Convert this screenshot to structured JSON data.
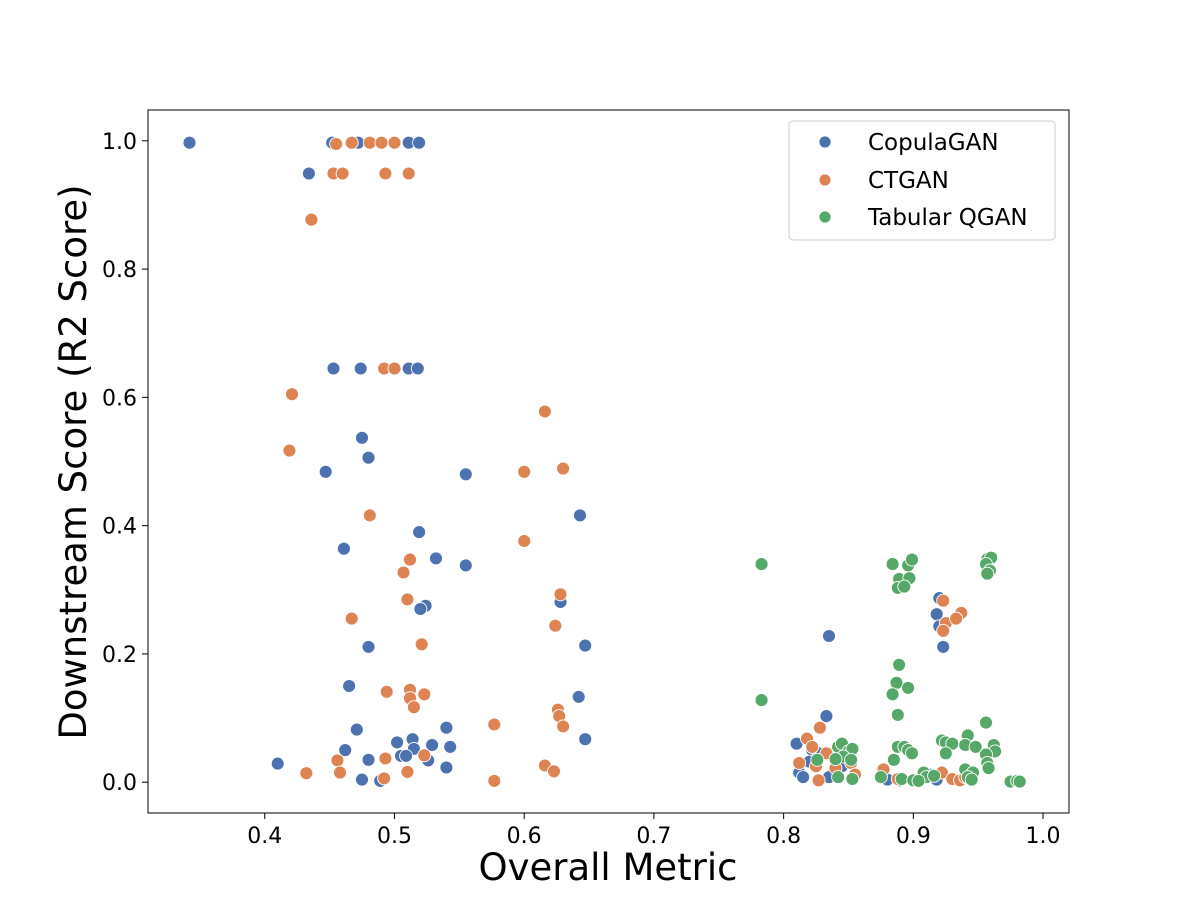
{
  "chart_data": {
    "type": "scatter",
    "title": "",
    "xlabel": "Overall Metric",
    "ylabel": "Downstream Score (R2 Score)",
    "xlim": [
      0.31,
      1.02
    ],
    "ylim": [
      -0.048,
      1.048
    ],
    "xticks": [
      0.4,
      0.5,
      0.6,
      0.7,
      0.8,
      0.9,
      1.0
    ],
    "xtick_labels": [
      "0.4",
      "0.5",
      "0.6",
      "0.7",
      "0.8",
      "0.9",
      "1.0"
    ],
    "yticks": [
      0.0,
      0.2,
      0.4,
      0.6,
      0.8,
      1.0
    ],
    "ytick_labels": [
      "0.0",
      "0.2",
      "0.4",
      "0.6",
      "0.8",
      "1.0"
    ],
    "grid": false,
    "legend_position": "top-right",
    "series": [
      {
        "name": "CopulaGAN",
        "color": "#4c72b0",
        "points": [
          [
            0.342,
            0.997
          ],
          [
            0.452,
            0.997
          ],
          [
            0.472,
            0.997
          ],
          [
            0.511,
            0.997
          ],
          [
            0.519,
            0.997
          ],
          [
            0.434,
            0.949
          ],
          [
            0.453,
            0.645
          ],
          [
            0.474,
            0.645
          ],
          [
            0.511,
            0.645
          ],
          [
            0.518,
            0.645
          ],
          [
            0.475,
            0.537
          ],
          [
            0.48,
            0.506
          ],
          [
            0.447,
            0.484
          ],
          [
            0.555,
            0.48
          ],
          [
            0.643,
            0.416
          ],
          [
            0.519,
            0.39
          ],
          [
            0.461,
            0.364
          ],
          [
            0.532,
            0.349
          ],
          [
            0.555,
            0.338
          ],
          [
            0.628,
            0.281
          ],
          [
            0.524,
            0.275
          ],
          [
            0.52,
            0.27
          ],
          [
            0.48,
            0.211
          ],
          [
            0.647,
            0.213
          ],
          [
            0.465,
            0.15
          ],
          [
            0.642,
            0.133
          ],
          [
            0.471,
            0.082
          ],
          [
            0.54,
            0.085
          ],
          [
            0.647,
            0.067
          ],
          [
            0.514,
            0.067
          ],
          [
            0.502,
            0.062
          ],
          [
            0.529,
            0.058
          ],
          [
            0.543,
            0.055
          ],
          [
            0.515,
            0.052
          ],
          [
            0.462,
            0.05
          ],
          [
            0.505,
            0.041
          ],
          [
            0.509,
            0.041
          ],
          [
            0.48,
            0.035
          ],
          [
            0.526,
            0.034
          ],
          [
            0.41,
            0.029
          ],
          [
            0.54,
            0.023
          ],
          [
            0.475,
            0.004
          ],
          [
            0.489,
            0.002
          ],
          [
            0.818,
            0.067
          ],
          [
            0.833,
            0.103
          ],
          [
            0.835,
            0.228
          ],
          [
            0.81,
            0.06
          ],
          [
            0.822,
            0.05
          ],
          [
            0.812,
            0.015
          ],
          [
            0.815,
            0.008
          ],
          [
            0.827,
            0.045
          ],
          [
            0.82,
            0.032
          ],
          [
            0.835,
            0.008
          ],
          [
            0.845,
            0.025
          ],
          [
            0.92,
            0.287
          ],
          [
            0.918,
            0.262
          ],
          [
            0.92,
            0.243
          ],
          [
            0.923,
            0.211
          ],
          [
            0.912,
            0.012
          ],
          [
            0.918,
            0.004
          ],
          [
            0.88,
            0.004
          ],
          [
            0.889,
            0.003
          ]
        ]
      },
      {
        "name": "CTGAN",
        "color": "#dd8452",
        "points": [
          [
            0.455,
            0.995
          ],
          [
            0.467,
            0.997
          ],
          [
            0.481,
            0.997
          ],
          [
            0.49,
            0.997
          ],
          [
            0.5,
            0.997
          ],
          [
            0.453,
            0.949
          ],
          [
            0.46,
            0.949
          ],
          [
            0.493,
            0.949
          ],
          [
            0.511,
            0.949
          ],
          [
            0.436,
            0.877
          ],
          [
            0.492,
            0.645
          ],
          [
            0.5,
            0.645
          ],
          [
            0.421,
            0.605
          ],
          [
            0.419,
            0.517
          ],
          [
            0.616,
            0.578
          ],
          [
            0.6,
            0.484
          ],
          [
            0.63,
            0.489
          ],
          [
            0.481,
            0.416
          ],
          [
            0.6,
            0.376
          ],
          [
            0.512,
            0.347
          ],
          [
            0.507,
            0.327
          ],
          [
            0.628,
            0.293
          ],
          [
            0.51,
            0.285
          ],
          [
            0.467,
            0.255
          ],
          [
            0.624,
            0.244
          ],
          [
            0.521,
            0.215
          ],
          [
            0.494,
            0.141
          ],
          [
            0.512,
            0.144
          ],
          [
            0.523,
            0.137
          ],
          [
            0.512,
            0.131
          ],
          [
            0.515,
            0.117
          ],
          [
            0.626,
            0.113
          ],
          [
            0.627,
            0.103
          ],
          [
            0.63,
            0.087
          ],
          [
            0.577,
            0.09
          ],
          [
            0.523,
            0.042
          ],
          [
            0.493,
            0.037
          ],
          [
            0.456,
            0.034
          ],
          [
            0.616,
            0.026
          ],
          [
            0.623,
            0.017
          ],
          [
            0.51,
            0.016
          ],
          [
            0.432,
            0.014
          ],
          [
            0.458,
            0.015
          ],
          [
            0.492,
            0.006
          ],
          [
            0.577,
            0.002
          ],
          [
            0.828,
            0.085
          ],
          [
            0.818,
            0.068
          ],
          [
            0.822,
            0.055
          ],
          [
            0.833,
            0.045
          ],
          [
            0.812,
            0.03
          ],
          [
            0.825,
            0.025
          ],
          [
            0.827,
            0.003
          ],
          [
            0.84,
            0.022
          ],
          [
            0.852,
            0.03
          ],
          [
            0.855,
            0.012
          ],
          [
            0.877,
            0.02
          ],
          [
            0.888,
            0.005
          ],
          [
            0.923,
            0.283
          ],
          [
            0.937,
            0.264
          ],
          [
            0.925,
            0.248
          ],
          [
            0.933,
            0.255
          ],
          [
            0.923,
            0.236
          ],
          [
            0.922,
            0.015
          ],
          [
            0.93,
            0.005
          ],
          [
            0.936,
            0.003
          ],
          [
            0.94,
            0.008
          ]
        ]
      },
      {
        "name": "Tabular QGAN",
        "color": "#55a868",
        "points": [
          [
            0.783,
            0.34
          ],
          [
            0.783,
            0.128
          ],
          [
            0.884,
            0.34
          ],
          [
            0.896,
            0.338
          ],
          [
            0.899,
            0.347
          ],
          [
            0.889,
            0.317
          ],
          [
            0.897,
            0.318
          ],
          [
            0.888,
            0.303
          ],
          [
            0.893,
            0.305
          ],
          [
            0.889,
            0.183
          ],
          [
            0.887,
            0.155
          ],
          [
            0.896,
            0.147
          ],
          [
            0.884,
            0.137
          ],
          [
            0.888,
            0.105
          ],
          [
            0.957,
            0.348
          ],
          [
            0.96,
            0.35
          ],
          [
            0.956,
            0.34
          ],
          [
            0.959,
            0.33
          ],
          [
            0.957,
            0.325
          ],
          [
            0.956,
            0.093
          ],
          [
            0.942,
            0.073
          ],
          [
            0.922,
            0.065
          ],
          [
            0.925,
            0.062
          ],
          [
            0.93,
            0.06
          ],
          [
            0.94,
            0.058
          ],
          [
            0.948,
            0.055
          ],
          [
            0.962,
            0.058
          ],
          [
            0.963,
            0.048
          ],
          [
            0.956,
            0.043
          ],
          [
            0.925,
            0.045
          ],
          [
            0.957,
            0.03
          ],
          [
            0.958,
            0.022
          ],
          [
            0.94,
            0.02
          ],
          [
            0.946,
            0.015
          ],
          [
            0.942,
            0.008
          ],
          [
            0.945,
            0.004
          ],
          [
            0.842,
            0.055
          ],
          [
            0.845,
            0.06
          ],
          [
            0.85,
            0.048
          ],
          [
            0.853,
            0.052
          ],
          [
            0.846,
            0.04
          ],
          [
            0.84,
            0.036
          ],
          [
            0.826,
            0.035
          ],
          [
            0.852,
            0.035
          ],
          [
            0.888,
            0.055
          ],
          [
            0.893,
            0.055
          ],
          [
            0.896,
            0.05
          ],
          [
            0.899,
            0.045
          ],
          [
            0.885,
            0.035
          ],
          [
            0.842,
            0.008
          ],
          [
            0.853,
            0.005
          ],
          [
            0.875,
            0.008
          ],
          [
            0.891,
            0.005
          ],
          [
            0.9,
            0.003
          ],
          [
            0.908,
            0.015
          ],
          [
            0.91,
            0.008
          ],
          [
            0.916,
            0.01
          ],
          [
            0.904,
            0.002
          ],
          [
            0.975,
            0.001
          ],
          [
            0.98,
            0.002
          ],
          [
            0.982,
            0.001
          ]
        ]
      }
    ]
  }
}
